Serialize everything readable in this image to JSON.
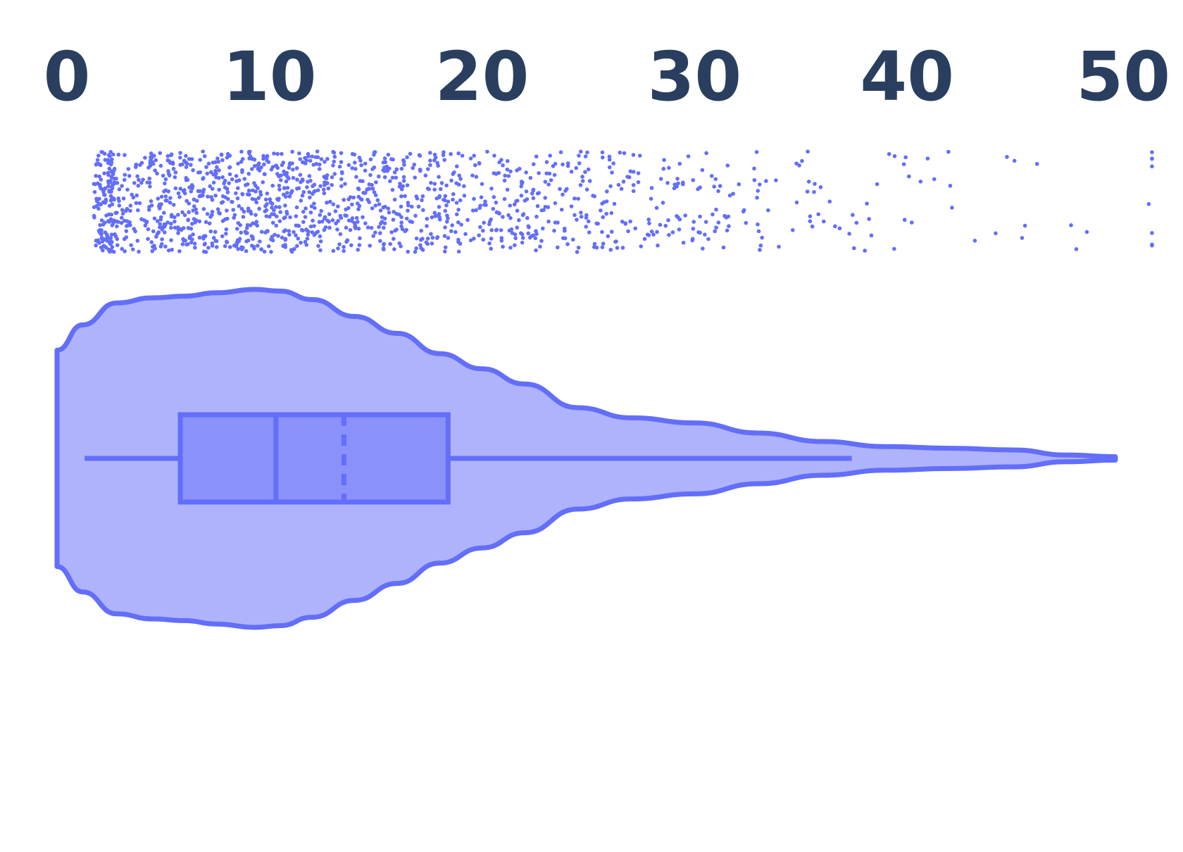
{
  "chart_data": {
    "type": "violin",
    "orientation": "horizontal",
    "title": "",
    "xlabel": "",
    "ylabel": "",
    "xlim": [
      0,
      50
    ],
    "x_tick_values": [
      0,
      10,
      20,
      30,
      40,
      50
    ],
    "x_tick_labels": [
      "0",
      "10",
      "20",
      "30",
      "40",
      "50"
    ],
    "axis_position": "top",
    "grid": false,
    "color": "#636efa",
    "fill_color": "#aeb3fc",
    "box_fill_color": "#8a91fb",
    "points": "all",
    "point_count": 1500,
    "box": {
      "whisker_low": 1.3,
      "q1": 5.8,
      "median": 10.3,
      "mean": 13.5,
      "q3": 18.4,
      "whisker_high": 37.4
    },
    "data_range": [
      0,
      49.8
    ],
    "density_halfwidth_relative": [
      {
        "x": 0,
        "w": 0.64
      },
      {
        "x": 1.2,
        "w": 0.79
      },
      {
        "x": 2.8,
        "w": 0.92
      },
      {
        "x": 4.5,
        "w": 0.95
      },
      {
        "x": 6,
        "w": 0.96
      },
      {
        "x": 7.5,
        "w": 0.98
      },
      {
        "x": 9.3,
        "w": 1.0
      },
      {
        "x": 10.5,
        "w": 0.99
      },
      {
        "x": 12,
        "w": 0.94
      },
      {
        "x": 14,
        "w": 0.84
      },
      {
        "x": 16,
        "w": 0.74
      },
      {
        "x": 18,
        "w": 0.62
      },
      {
        "x": 20,
        "w": 0.53
      },
      {
        "x": 22,
        "w": 0.44
      },
      {
        "x": 24.5,
        "w": 0.3
      },
      {
        "x": 27,
        "w": 0.24
      },
      {
        "x": 30,
        "w": 0.21
      },
      {
        "x": 33,
        "w": 0.15
      },
      {
        "x": 36,
        "w": 0.1
      },
      {
        "x": 39,
        "w": 0.07
      },
      {
        "x": 42,
        "w": 0.06
      },
      {
        "x": 45,
        "w": 0.05
      },
      {
        "x": 47.5,
        "w": 0.02
      },
      {
        "x": 49.8,
        "w": 0.01
      }
    ]
  }
}
